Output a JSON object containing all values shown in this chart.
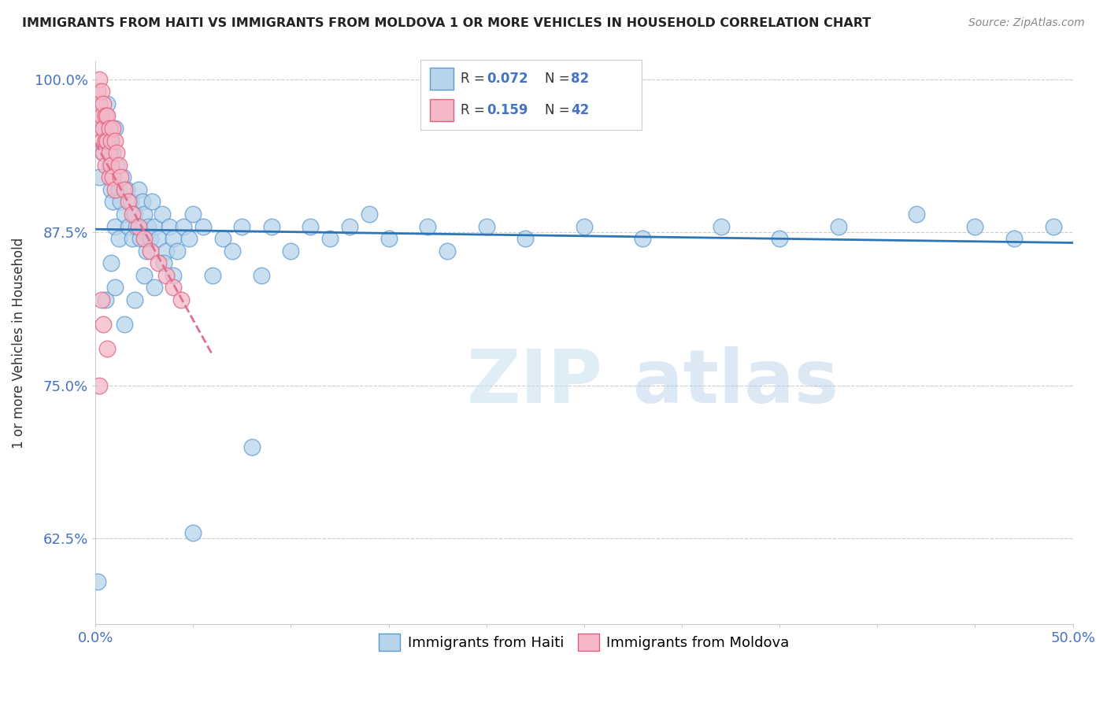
{
  "title": "IMMIGRANTS FROM HAITI VS IMMIGRANTS FROM MOLDOVA 1 OR MORE VEHICLES IN HOUSEHOLD CORRELATION CHART",
  "source": "Source: ZipAtlas.com",
  "ylabel": "1 or more Vehicles in Household",
  "xlim": [
    0.0,
    0.5
  ],
  "ylim": [
    0.555,
    1.015
  ],
  "xticks": [
    0.0,
    0.05,
    0.1,
    0.15,
    0.2,
    0.25,
    0.3,
    0.35,
    0.4,
    0.45,
    0.5
  ],
  "xticklabels": [
    "0.0%",
    "",
    "",
    "",
    "",
    "",
    "",
    "",
    "",
    "",
    "50.0%"
  ],
  "yticks": [
    0.625,
    0.75,
    0.875,
    1.0
  ],
  "yticklabels": [
    "62.5%",
    "75.0%",
    "87.5%",
    "100.0%"
  ],
  "haiti_color": "#b8d4ea",
  "haiti_edge_color": "#5b9bd5",
  "moldova_color": "#f4b8c8",
  "moldova_edge_color": "#e06080",
  "regression_haiti_color": "#2e75b6",
  "regression_moldova_color": "#e07090",
  "background_color": "#ffffff",
  "grid_color": "#cccccc",
  "haiti_x": [
    0.001,
    0.002,
    0.003,
    0.004,
    0.005,
    0.005,
    0.006,
    0.007,
    0.007,
    0.008,
    0.008,
    0.009,
    0.009,
    0.01,
    0.01,
    0.011,
    0.012,
    0.012,
    0.013,
    0.014,
    0.015,
    0.016,
    0.017,
    0.018,
    0.019,
    0.02,
    0.021,
    0.022,
    0.023,
    0.024,
    0.025,
    0.026,
    0.027,
    0.028,
    0.029,
    0.03,
    0.032,
    0.034,
    0.036,
    0.038,
    0.04,
    0.042,
    0.045,
    0.048,
    0.05,
    0.055,
    0.06,
    0.065,
    0.07,
    0.075,
    0.08,
    0.085,
    0.09,
    0.1,
    0.11,
    0.12,
    0.13,
    0.14,
    0.15,
    0.17,
    0.18,
    0.2,
    0.22,
    0.25,
    0.28,
    0.32,
    0.35,
    0.38,
    0.42,
    0.45,
    0.47,
    0.49,
    0.005,
    0.008,
    0.01,
    0.015,
    0.02,
    0.025,
    0.03,
    0.035,
    0.04,
    0.05
  ],
  "haiti_y": [
    0.59,
    0.92,
    0.96,
    0.94,
    0.97,
    0.95,
    0.98,
    0.96,
    0.93,
    0.95,
    0.91,
    0.94,
    0.9,
    0.96,
    0.88,
    0.93,
    0.91,
    0.87,
    0.9,
    0.92,
    0.89,
    0.91,
    0.88,
    0.9,
    0.87,
    0.89,
    0.88,
    0.91,
    0.87,
    0.9,
    0.89,
    0.86,
    0.88,
    0.87,
    0.9,
    0.88,
    0.87,
    0.89,
    0.86,
    0.88,
    0.87,
    0.86,
    0.88,
    0.87,
    0.89,
    0.88,
    0.84,
    0.87,
    0.86,
    0.88,
    0.7,
    0.84,
    0.88,
    0.86,
    0.88,
    0.87,
    0.88,
    0.89,
    0.87,
    0.88,
    0.86,
    0.88,
    0.87,
    0.88,
    0.87,
    0.88,
    0.87,
    0.88,
    0.89,
    0.88,
    0.87,
    0.88,
    0.82,
    0.85,
    0.83,
    0.8,
    0.82,
    0.84,
    0.83,
    0.85,
    0.84,
    0.63
  ],
  "moldova_x": [
    0.001,
    0.001,
    0.002,
    0.002,
    0.002,
    0.003,
    0.003,
    0.003,
    0.004,
    0.004,
    0.004,
    0.005,
    0.005,
    0.005,
    0.006,
    0.006,
    0.007,
    0.007,
    0.007,
    0.008,
    0.008,
    0.009,
    0.009,
    0.01,
    0.01,
    0.011,
    0.012,
    0.013,
    0.015,
    0.017,
    0.019,
    0.022,
    0.025,
    0.028,
    0.032,
    0.036,
    0.04,
    0.044,
    0.002,
    0.003,
    0.004,
    0.006
  ],
  "moldova_y": [
    0.97,
    0.99,
    0.98,
    0.96,
    1.0,
    0.99,
    0.97,
    0.95,
    0.98,
    0.96,
    0.94,
    0.97,
    0.95,
    0.93,
    0.97,
    0.95,
    0.96,
    0.94,
    0.92,
    0.95,
    0.93,
    0.96,
    0.92,
    0.95,
    0.91,
    0.94,
    0.93,
    0.92,
    0.91,
    0.9,
    0.89,
    0.88,
    0.87,
    0.86,
    0.85,
    0.84,
    0.83,
    0.82,
    0.75,
    0.82,
    0.8,
    0.78
  ]
}
